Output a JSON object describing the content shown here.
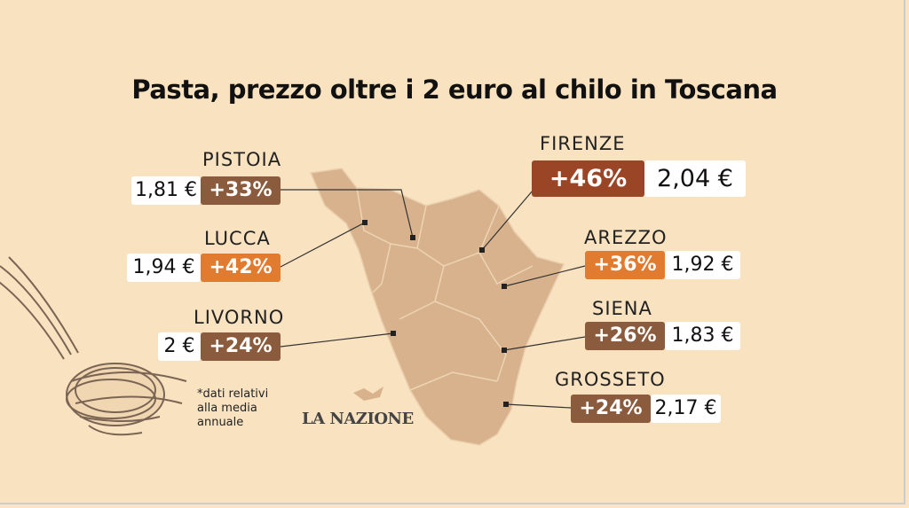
{
  "title": "Pasta, prezzo oltre i 2 euro al chilo in Toscana",
  "colors": {
    "background": "#f9e2c0",
    "map": "#d8b28c",
    "brown": "#8b5b3d",
    "orange": "#e07b30",
    "dark_red": "#9b4527"
  },
  "provinces": [
    {
      "name": "PISTOIA",
      "price": "1,81 €",
      "change": "+33%"
    },
    {
      "name": "LUCCA",
      "price": "1,94 €",
      "change": "+42%"
    },
    {
      "name": "LIVORNO",
      "price": "2 €",
      "change": "+24%"
    },
    {
      "name": "FIRENZE",
      "price": "2,04 €",
      "change": "+46%"
    },
    {
      "name": "AREZZO",
      "price": "1,92 €",
      "change": "+36%"
    },
    {
      "name": "SIENA",
      "price": "1,83 €",
      "change": "+26%"
    },
    {
      "name": "GROSSETO",
      "price": "2,17 €",
      "change": "+24%"
    }
  ],
  "footnote": "*dati relativi alla media annuale",
  "logo": "LA NAZIONE"
}
